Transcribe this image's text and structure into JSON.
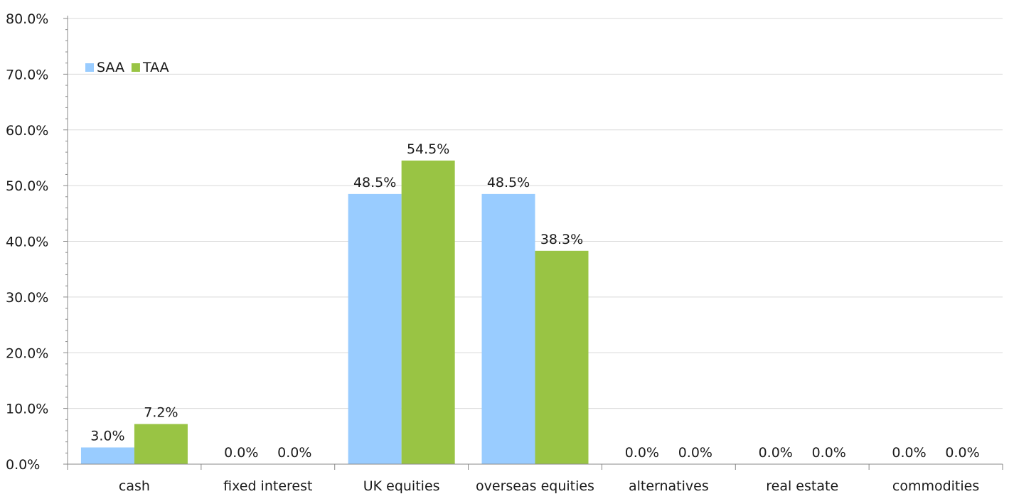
{
  "chart_data": {
    "type": "bar",
    "title": "",
    "xlabel": "",
    "ylabel": "",
    "categories": [
      "cash",
      "fixed interest",
      "UK equities",
      "overseas equities",
      "alternatives",
      "real estate",
      "commodities"
    ],
    "series": [
      {
        "name": "SAA",
        "color": "#99ccff",
        "values": [
          3.0,
          0.0,
          48.5,
          48.5,
          0.0,
          0.0,
          0.0
        ],
        "labels": [
          "3.0%",
          "0.0%",
          "48.5%",
          "48.5%",
          "0.0%",
          "0.0%",
          "0.0%"
        ]
      },
      {
        "name": "TAA",
        "color": "#99c444",
        "values": [
          7.2,
          0.0,
          54.5,
          38.3,
          0.0,
          0.0,
          0.0
        ],
        "labels": [
          "7.2%",
          "0.0%",
          "54.5%",
          "38.3%",
          "0.0%",
          "0.0%",
          "0.0%"
        ]
      }
    ],
    "ylim": [
      0,
      80
    ],
    "yticks": [
      0,
      10,
      20,
      30,
      40,
      50,
      60,
      70,
      80
    ],
    "ytick_labels": [
      "0.0%",
      "10.0%",
      "20.0%",
      "30.0%",
      "40.0%",
      "50.0%",
      "60.0%",
      "70.0%",
      "80.0%"
    ],
    "grid": true,
    "legend": "top-left"
  }
}
